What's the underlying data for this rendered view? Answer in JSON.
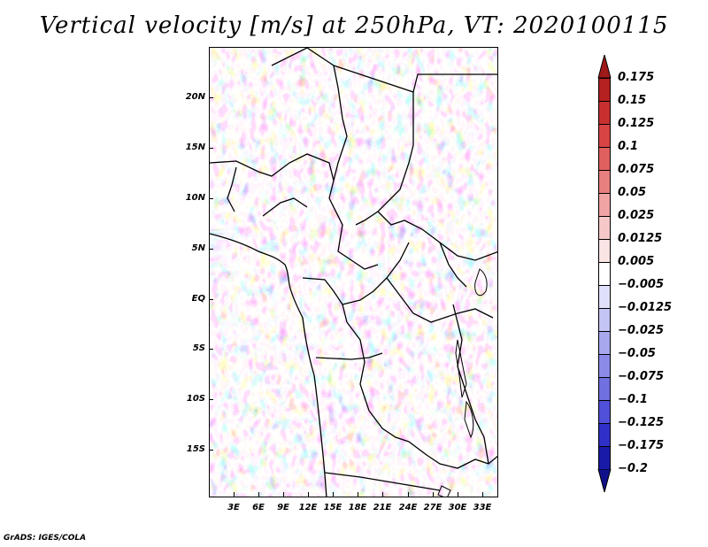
{
  "title": "Vertical velocity [m/s] at 250hPa, VT: 2020100115",
  "footer": "GrADS: IGES/COLA",
  "y_ticks": [
    "20N",
    "15N",
    "10N",
    "5N",
    "EQ",
    "5S",
    "10S",
    "15S"
  ],
  "x_ticks": [
    "3E",
    "6E",
    "9E",
    "12E",
    "15E",
    "18E",
    "21E",
    "24E",
    "27E",
    "30E",
    "33E"
  ],
  "colorbar": {
    "labels": [
      "0.175",
      "0.15",
      "0.125",
      "0.1",
      "0.075",
      "0.05",
      "0.025",
      "0.0125",
      "0.005",
      "−0.005",
      "−0.0125",
      "−0.025",
      "−0.05",
      "−0.075",
      "−0.1",
      "−0.125",
      "−0.175",
      "−0.2"
    ],
    "colors": [
      "#a01a1a",
      "#b52020",
      "#c83030",
      "#d84444",
      "#e06060",
      "#e88080",
      "#f0a4a4",
      "#f6c8c8",
      "#fbe4e4",
      "#ffffff",
      "#e0e0fb",
      "#c4c4f5",
      "#a8a8ef",
      "#8c8ce8",
      "#7070e0",
      "#5050d8",
      "#3030c8",
      "#1a1aa8",
      "#10108a"
    ]
  }
}
